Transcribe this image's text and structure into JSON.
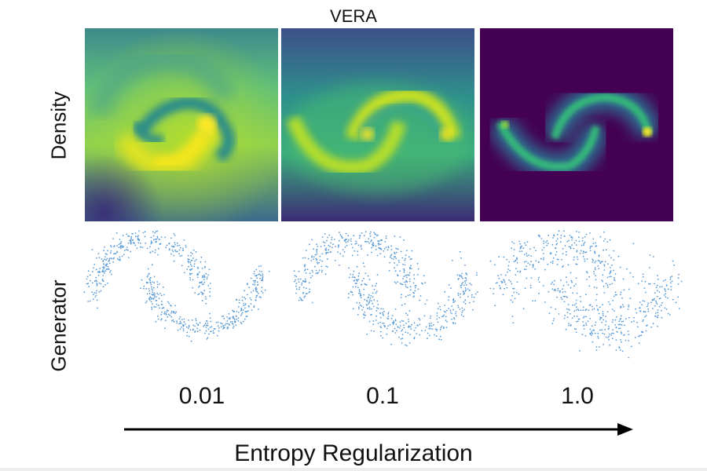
{
  "figure": {
    "title": "VERA",
    "row_labels": {
      "density": "Density",
      "generator": "Generator"
    },
    "columns": [
      {
        "value_label": "0.01"
      },
      {
        "value_label": "0.1"
      },
      {
        "value_label": "1.0"
      }
    ],
    "x_axis_label": "Entropy Regularization"
  },
  "colors": {
    "viridis_dark": "#440154",
    "viridis_purple": "#3b2a74",
    "viridis_blue": "#31688e",
    "viridis_teal": "#21918c",
    "viridis_green": "#35b779",
    "viridis_lime": "#90d743",
    "viridis_yellow": "#fde725",
    "scatter_point": "#5b9bd5"
  }
}
